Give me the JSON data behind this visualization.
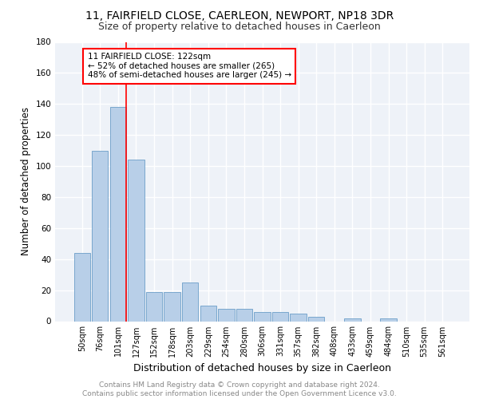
{
  "title1": "11, FAIRFIELD CLOSE, CAERLEON, NEWPORT, NP18 3DR",
  "title2": "Size of property relative to detached houses in Caerleon",
  "xlabel": "Distribution of detached houses by size in Caerleon",
  "ylabel": "Number of detached properties",
  "footnote": "Contains HM Land Registry data © Crown copyright and database right 2024.\nContains public sector information licensed under the Open Government Licence v3.0.",
  "bar_labels": [
    "50sqm",
    "76sqm",
    "101sqm",
    "127sqm",
    "152sqm",
    "178sqm",
    "203sqm",
    "229sqm",
    "254sqm",
    "280sqm",
    "306sqm",
    "331sqm",
    "357sqm",
    "382sqm",
    "408sqm",
    "433sqm",
    "459sqm",
    "484sqm",
    "510sqm",
    "535sqm",
    "561sqm"
  ],
  "bar_values": [
    44,
    110,
    138,
    104,
    19,
    19,
    25,
    10,
    8,
    8,
    6,
    6,
    5,
    3,
    0,
    2,
    0,
    2,
    0,
    0,
    0
  ],
  "bar_color": "#b8cfe8",
  "bar_edge_color": "#6b9ec8",
  "vline_color": "red",
  "annotation_box_text": "11 FAIRFIELD CLOSE: 122sqm\n← 52% of detached houses are smaller (265)\n48% of semi-detached houses are larger (245) →",
  "annotation_box_color": "red",
  "annotation_box_facecolor": "white",
  "ylim": [
    0,
    180
  ],
  "yticks": [
    0,
    20,
    40,
    60,
    80,
    100,
    120,
    140,
    160,
    180
  ],
  "bg_color": "#eef2f8",
  "grid_color": "white",
  "title1_fontsize": 10,
  "title2_fontsize": 9,
  "xlabel_fontsize": 9,
  "ylabel_fontsize": 8.5,
  "tick_fontsize": 7,
  "ytick_fontsize": 7.5,
  "footnote_fontsize": 6.5,
  "annot_fontsize": 7.5
}
